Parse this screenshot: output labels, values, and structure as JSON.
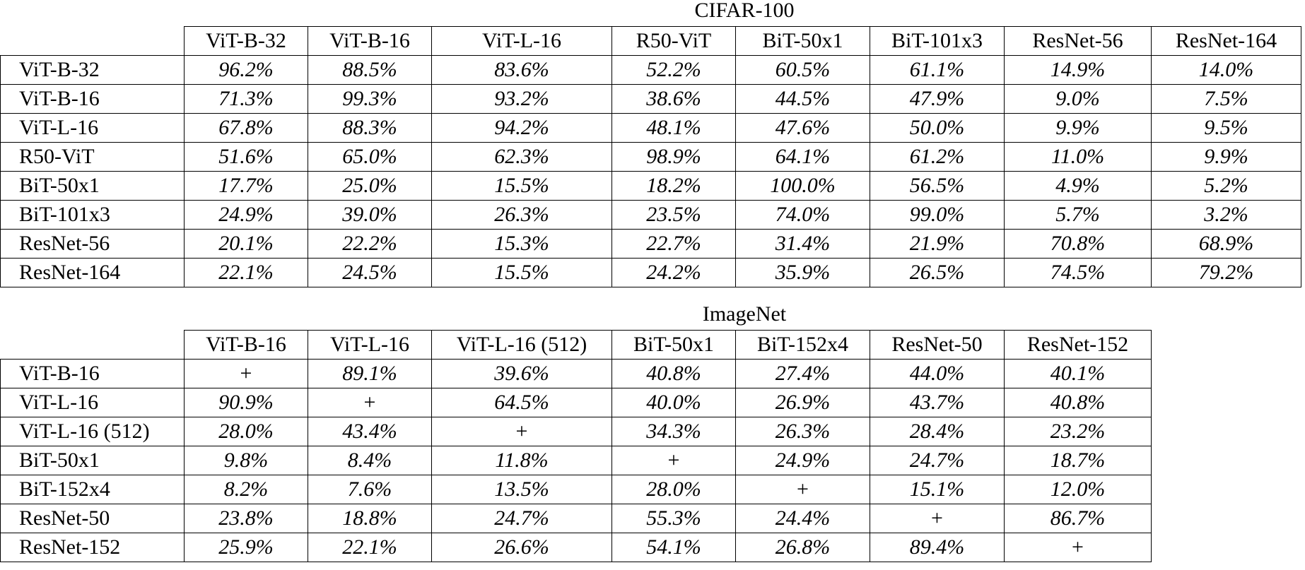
{
  "tables": [
    {
      "caption": "CIFAR-100",
      "columns": [
        "ViT-B-32",
        "ViT-B-16",
        "ViT-L-16",
        "R50-ViT",
        "BiT-50x1",
        "BiT-101x3",
        "ResNet-56",
        "ResNet-164"
      ],
      "rows": [
        {
          "label": "ViT-B-32",
          "values": [
            "96.2%",
            "88.5%",
            "83.6%",
            "52.2%",
            "60.5%",
            "61.1%",
            "14.9%",
            "14.0%"
          ]
        },
        {
          "label": "ViT-B-16",
          "values": [
            "71.3%",
            "99.3%",
            "93.2%",
            "38.6%",
            "44.5%",
            "47.9%",
            "9.0%",
            "7.5%"
          ]
        },
        {
          "label": "ViT-L-16",
          "values": [
            "67.8%",
            "88.3%",
            "94.2%",
            "48.1%",
            "47.6%",
            "50.0%",
            "9.9%",
            "9.5%"
          ]
        },
        {
          "label": "R50-ViT",
          "values": [
            "51.6%",
            "65.0%",
            "62.3%",
            "98.9%",
            "64.1%",
            "61.2%",
            "11.0%",
            "9.9%"
          ]
        },
        {
          "label": "BiT-50x1",
          "values": [
            "17.7%",
            "25.0%",
            "15.5%",
            "18.2%",
            "100.0%",
            "56.5%",
            "4.9%",
            "5.2%"
          ]
        },
        {
          "label": "BiT-101x3",
          "values": [
            "24.9%",
            "39.0%",
            "26.3%",
            "23.5%",
            "74.0%",
            "99.0%",
            "5.7%",
            "3.2%"
          ]
        },
        {
          "label": "ResNet-56",
          "values": [
            "20.1%",
            "22.2%",
            "15.3%",
            "22.7%",
            "31.4%",
            "21.9%",
            "70.8%",
            "68.9%"
          ]
        },
        {
          "label": "ResNet-164",
          "values": [
            "22.1%",
            "24.5%",
            "15.5%",
            "24.2%",
            "35.9%",
            "26.5%",
            "74.5%",
            "79.2%"
          ]
        }
      ]
    },
    {
      "caption": "ImageNet",
      "columns": [
        "ViT-B-16",
        "ViT-L-16",
        "ViT-L-16 (512)",
        "BiT-50x1",
        "BiT-152x4",
        "ResNet-50",
        "ResNet-152"
      ],
      "rows": [
        {
          "label": "ViT-B-16",
          "values": [
            "+",
            "89.1%",
            "39.6%",
            "40.8%",
            "27.4%",
            "44.0%",
            "40.1%"
          ]
        },
        {
          "label": "ViT-L-16",
          "values": [
            "90.9%",
            "+",
            "64.5%",
            "40.0%",
            "26.9%",
            "43.7%",
            "40.8%"
          ]
        },
        {
          "label": "ViT-L-16 (512)",
          "values": [
            "28.0%",
            "43.4%",
            "+",
            "34.3%",
            "26.3%",
            "28.4%",
            "23.2%"
          ]
        },
        {
          "label": "BiT-50x1",
          "values": [
            "9.8%",
            "8.4%",
            "11.8%",
            "+",
            "24.9%",
            "24.7%",
            "18.7%"
          ]
        },
        {
          "label": "BiT-152x4",
          "values": [
            "8.2%",
            "7.6%",
            "13.5%",
            "28.0%",
            "+",
            "15.1%",
            "12.0%"
          ]
        },
        {
          "label": "ResNet-50",
          "values": [
            "23.8%",
            "18.8%",
            "24.7%",
            "55.3%",
            "24.4%",
            "+",
            "86.7%"
          ]
        },
        {
          "label": "ResNet-152",
          "values": [
            "25.9%",
            "22.1%",
            "26.6%",
            "54.1%",
            "26.8%",
            "89.4%",
            "+"
          ]
        }
      ]
    }
  ]
}
